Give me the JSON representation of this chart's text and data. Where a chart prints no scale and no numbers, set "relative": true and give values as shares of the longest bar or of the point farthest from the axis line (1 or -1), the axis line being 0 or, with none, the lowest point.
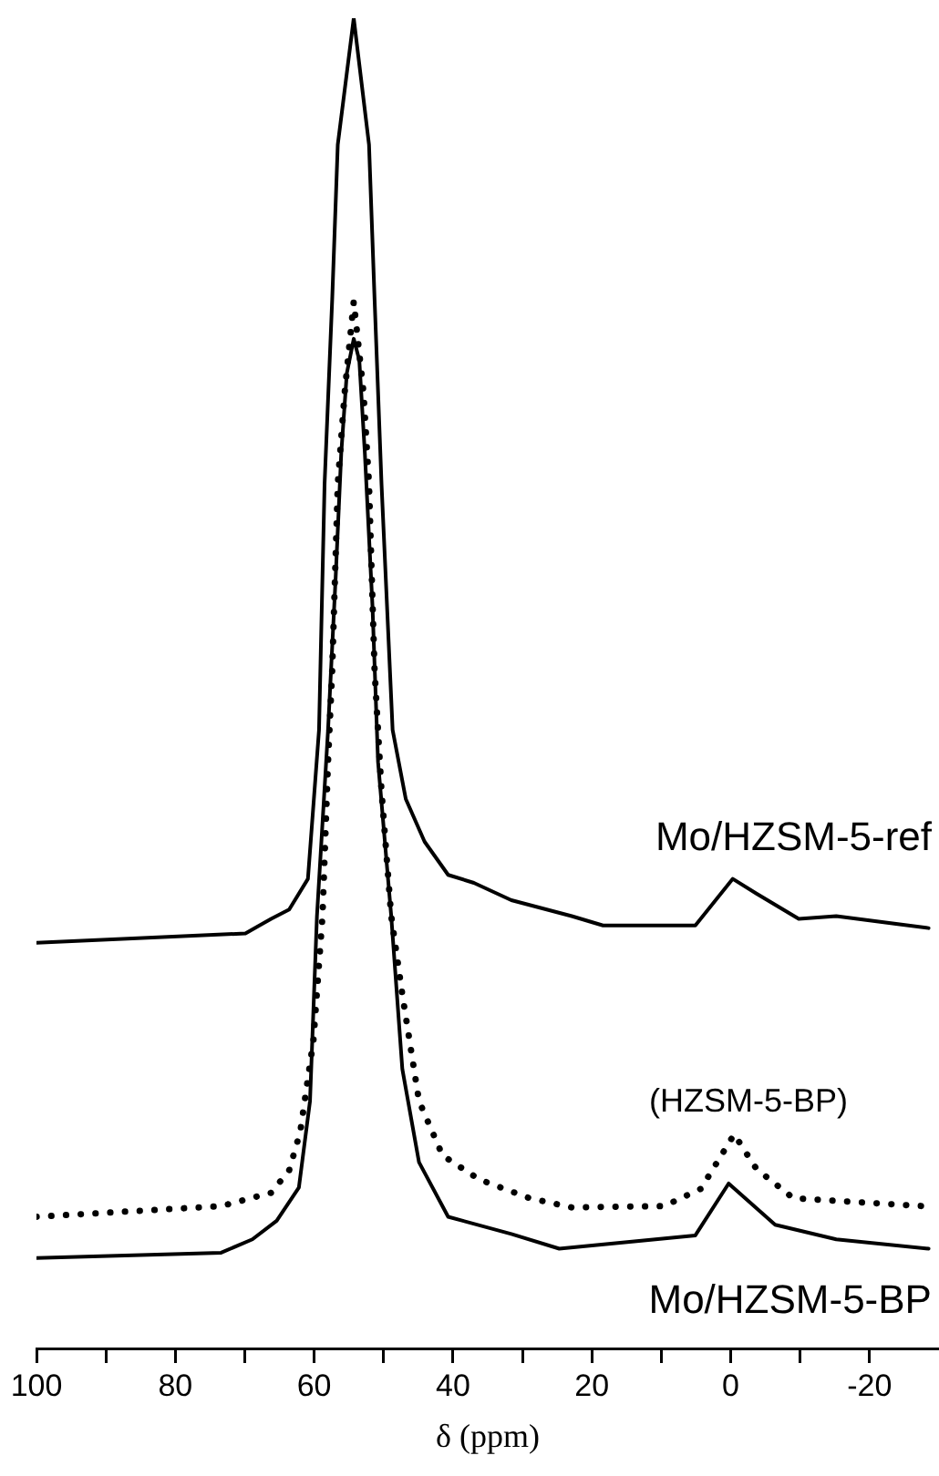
{
  "chart_data": {
    "type": "line",
    "relative": true,
    "xlabel": "δ (ppm)",
    "xlim": [
      100,
      -30
    ],
    "xticks": [
      100,
      {
        "value": 90,
        "label": null
      },
      80,
      {
        "value": 70,
        "label": null
      },
      60,
      {
        "value": 50,
        "label": null
      },
      40,
      {
        "value": 30,
        "label": null
      },
      20,
      {
        "value": 10,
        "label": null
      },
      0,
      {
        "value": -10,
        "label": null
      },
      -20
    ],
    "grid": false,
    "legend": false,
    "marker": "none",
    "series": [
      {
        "name": "Mo/HZSM-5-ref",
        "color": "#000000",
        "line_style": "solid",
        "x": [
          100,
          69.9,
          66.2,
          63.6,
          60.9,
          59.3,
          58.5,
          57.4,
          56.6,
          54.3,
          52.1,
          51.3,
          50.3,
          48.7,
          46.8,
          44.1,
          40.7,
          37.0,
          31.6,
          22.9,
          18.4,
          5.1,
          -0.3,
          -3.7,
          -9.8,
          -15.2,
          -28.5
        ],
        "values": [
          0.305,
          0.312,
          0.323,
          0.33,
          0.353,
          0.465,
          0.65,
          0.789,
          0.905,
          1.0,
          0.905,
          0.789,
          0.65,
          0.465,
          0.413,
          0.381,
          0.356,
          0.35,
          0.337,
          0.325,
          0.318,
          0.318,
          0.353,
          0.342,
          0.323,
          0.325,
          0.316
        ]
      },
      {
        "name": "(HZSM-5-BP)",
        "color": "#000000",
        "line_style": "dotted",
        "x": [
          100,
          73.4,
          66.2,
          63.6,
          62.0,
          60.1,
          58.8,
          58.0,
          57.4,
          56.6,
          55.6,
          54.3,
          52.9,
          52.1,
          51.3,
          50.3,
          48.9,
          47.3,
          44.9,
          41.5,
          36.2,
          29.0,
          22.9,
          9.6,
          4.3,
          -0.5,
          -3.7,
          -9.0,
          -27.7
        ],
        "values": [
          0.099,
          0.107,
          0.117,
          0.134,
          0.163,
          0.232,
          0.325,
          0.441,
          0.51,
          0.65,
          0.719,
          0.787,
          0.719,
          0.65,
          0.51,
          0.419,
          0.325,
          0.266,
          0.186,
          0.145,
          0.127,
          0.113,
          0.106,
          0.107,
          0.12,
          0.161,
          0.135,
          0.113,
          0.107
        ]
      },
      {
        "name": "Mo/HZSM-5-BP",
        "color": "#000000",
        "line_style": "solid",
        "x": [
          100,
          73.4,
          68.9,
          65.4,
          62.2,
          60.6,
          59.6,
          58.0,
          56.9,
          56.1,
          55.3,
          54.3,
          53.5,
          52.7,
          51.6,
          50.8,
          48.9,
          47.3,
          44.9,
          40.7,
          31.6,
          24.7,
          5.1,
          0.3,
          -6.4,
          -15.2,
          -28.5
        ],
        "values": [
          0.068,
          0.072,
          0.082,
          0.096,
          0.121,
          0.186,
          0.325,
          0.465,
          0.58,
          0.673,
          0.733,
          0.759,
          0.743,
          0.673,
          0.558,
          0.441,
          0.325,
          0.21,
          0.14,
          0.099,
          0.086,
          0.075,
          0.085,
          0.124,
          0.093,
          0.082,
          0.075
        ]
      }
    ]
  }
}
